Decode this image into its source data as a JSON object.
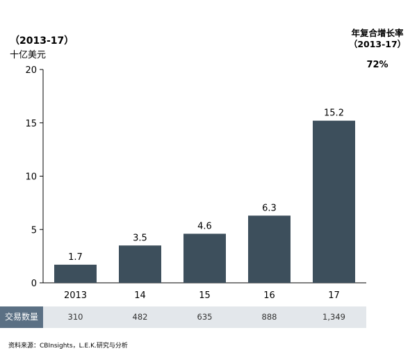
{
  "figure_label": "",
  "chart_title": "",
  "period": "（2013-17）",
  "unit": "十亿美元",
  "cagr": {
    "label_line1": "年复合增长率",
    "label_line2": "（2013-17）",
    "value": "72%"
  },
  "chart_data": {
    "type": "bar",
    "categories": [
      "2013",
      "14",
      "15",
      "16",
      "17"
    ],
    "values": [
      1.7,
      3.5,
      4.6,
      6.3,
      15.2
    ],
    "data_labels": [
      "1.7",
      "3.5",
      "4.6",
      "6.3",
      "15.2"
    ],
    "ylim": [
      0,
      20
    ],
    "yticks": [
      0,
      5,
      10,
      15,
      20
    ],
    "ylabel": "十亿美元",
    "xlabel": "",
    "grid": false,
    "bar_color": "#3d4f5c"
  },
  "deals": {
    "label": "交易数量",
    "values": [
      "310",
      "482",
      "635",
      "888",
      "1,349"
    ]
  },
  "source": "资料来源：CBInsights，L.E.K.研究与分析"
}
